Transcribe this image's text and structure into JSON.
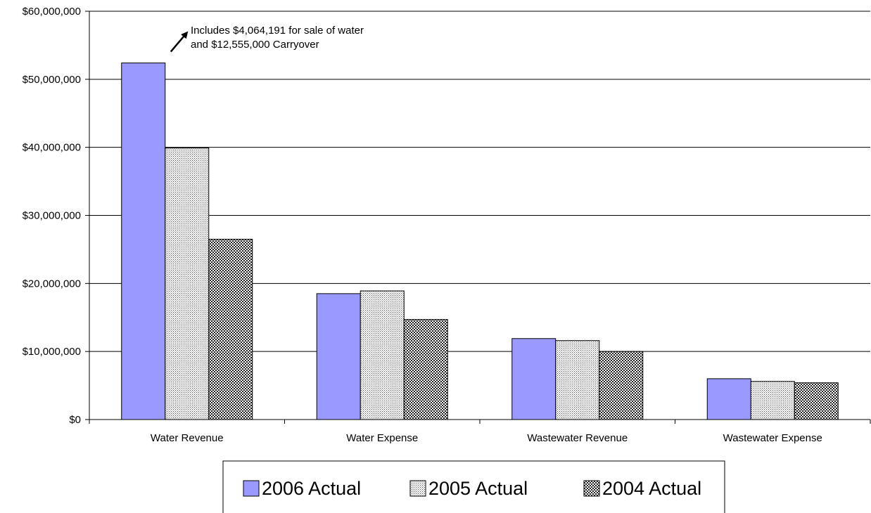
{
  "chart_data": {
    "type": "bar",
    "categories": [
      "Water Revenue",
      "Water Expense",
      "Wastewater Revenue",
      "Wastewater Expense"
    ],
    "series": [
      {
        "name": "2006 Actual",
        "values": [
          52400000,
          18500000,
          11900000,
          6000000
        ],
        "color": "#9999ff",
        "pattern": "solid"
      },
      {
        "name": "2005 Actual",
        "values": [
          39900000,
          18900000,
          11600000,
          5600000
        ],
        "color": "#c8c8c8",
        "pattern": "fine-dots"
      },
      {
        "name": "2004 Actual",
        "values": [
          26500000,
          14700000,
          10000000,
          5400000
        ],
        "color": "#a0a0a0",
        "pattern": "checker"
      }
    ],
    "yticks": [
      "$0",
      "$10,000,000",
      "$20,000,000",
      "$30,000,000",
      "$40,000,000",
      "$50,000,000",
      "$60,000,000"
    ],
    "ylim": [
      0,
      60000000
    ],
    "grid": true,
    "legend_position": "bottom",
    "annotation": {
      "lines": [
        "Includes $4,064,191 for sale of water",
        "and $12,555,000 Carryover"
      ],
      "target_category": "Water Revenue",
      "target_series": "2006 Actual"
    }
  }
}
